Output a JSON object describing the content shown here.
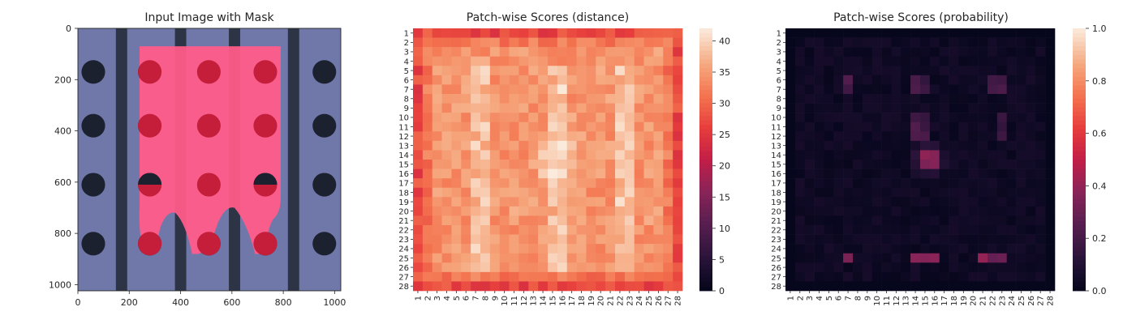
{
  "chart_data": [
    {
      "type": "image",
      "title": "Input Image with Mask",
      "xlim": [
        0,
        1024
      ],
      "ylim": [
        1024,
        0
      ],
      "xticks": [
        0,
        200,
        400,
        600,
        800,
        1000
      ],
      "yticks": [
        0,
        200,
        400,
        600,
        800,
        1000
      ],
      "xtick_labels": [
        "0",
        "200",
        "400",
        "600",
        "800",
        "1000"
      ],
      "ytick_labels": [
        "0",
        "200",
        "400",
        "600",
        "800",
        "1000"
      ],
      "background_color": "#6f78a8",
      "stripe_color": "#2d3446",
      "mask_color": "#ff5c8a",
      "hole_color": "#1c2130",
      "masked_hole_color": "#c41e3a",
      "stripe_x_centers": [
        170,
        400,
        610,
        840
      ],
      "hole_rows_y": [
        170,
        380,
        610,
        840
      ],
      "hole_cols_x": [
        60,
        280,
        510,
        730,
        960
      ]
    },
    {
      "type": "heatmap",
      "title": "Patch-wise Scores (distance)",
      "rows": 28,
      "cols": 28,
      "row_labels": [
        "1",
        "2",
        "3",
        "4",
        "5",
        "6",
        "7",
        "8",
        "9",
        "10",
        "11",
        "12",
        "13",
        "14",
        "15",
        "16",
        "17",
        "18",
        "19",
        "20",
        "21",
        "22",
        "23",
        "24",
        "25",
        "26",
        "27",
        "28"
      ],
      "col_labels": [
        "1",
        "2",
        "3",
        "4",
        "5",
        "6",
        "7",
        "8",
        "9",
        "10",
        "11",
        "12",
        "13",
        "14",
        "15",
        "16",
        "17",
        "18",
        "19",
        "20",
        "21",
        "22",
        "23",
        "24",
        "25",
        "26",
        "27",
        "28"
      ],
      "colorbar_range": [
        0,
        42
      ],
      "colorbar_ticks": [
        0,
        5,
        10,
        15,
        20,
        25,
        30,
        35,
        40
      ],
      "colorbar_tick_labels": [
        "0",
        "5",
        "10",
        "15",
        "20",
        "25",
        "30",
        "35",
        "40"
      ],
      "colormap": "rocket",
      "value_pattern": "about 25-30 along the border, 33-37 in the body, 38-41 at the brightest cells"
    },
    {
      "type": "heatmap",
      "title": "Patch-wise Scores (probability)",
      "rows": 28,
      "cols": 28,
      "row_labels": [
        "1",
        "2",
        "3",
        "4",
        "5",
        "6",
        "7",
        "8",
        "9",
        "10",
        "11",
        "12",
        "13",
        "14",
        "15",
        "16",
        "17",
        "18",
        "19",
        "20",
        "21",
        "22",
        "23",
        "24",
        "25",
        "26",
        "27",
        "28"
      ],
      "col_labels": [
        "1",
        "2",
        "3",
        "4",
        "5",
        "6",
        "7",
        "8",
        "9",
        "10",
        "11",
        "12",
        "13",
        "14",
        "15",
        "16",
        "17",
        "18",
        "19",
        "20",
        "21",
        "22",
        "23",
        "24",
        "25",
        "26",
        "27",
        "28"
      ],
      "colorbar_range": [
        0.0,
        1.0
      ],
      "colorbar_ticks": [
        0.0,
        0.2,
        0.4,
        0.6,
        0.8,
        1.0
      ],
      "colorbar_tick_labels": [
        "0.0",
        "0.2",
        "0.4",
        "0.6",
        "0.8",
        "1.0"
      ],
      "colormap": "rocket",
      "value_pattern": "near 0.0 almost everywhere; peak about 0.5 at rows 14-15, cols 15-16; small clusters of about 0.3-0.4 at row 25 and rows 6-7"
    }
  ]
}
